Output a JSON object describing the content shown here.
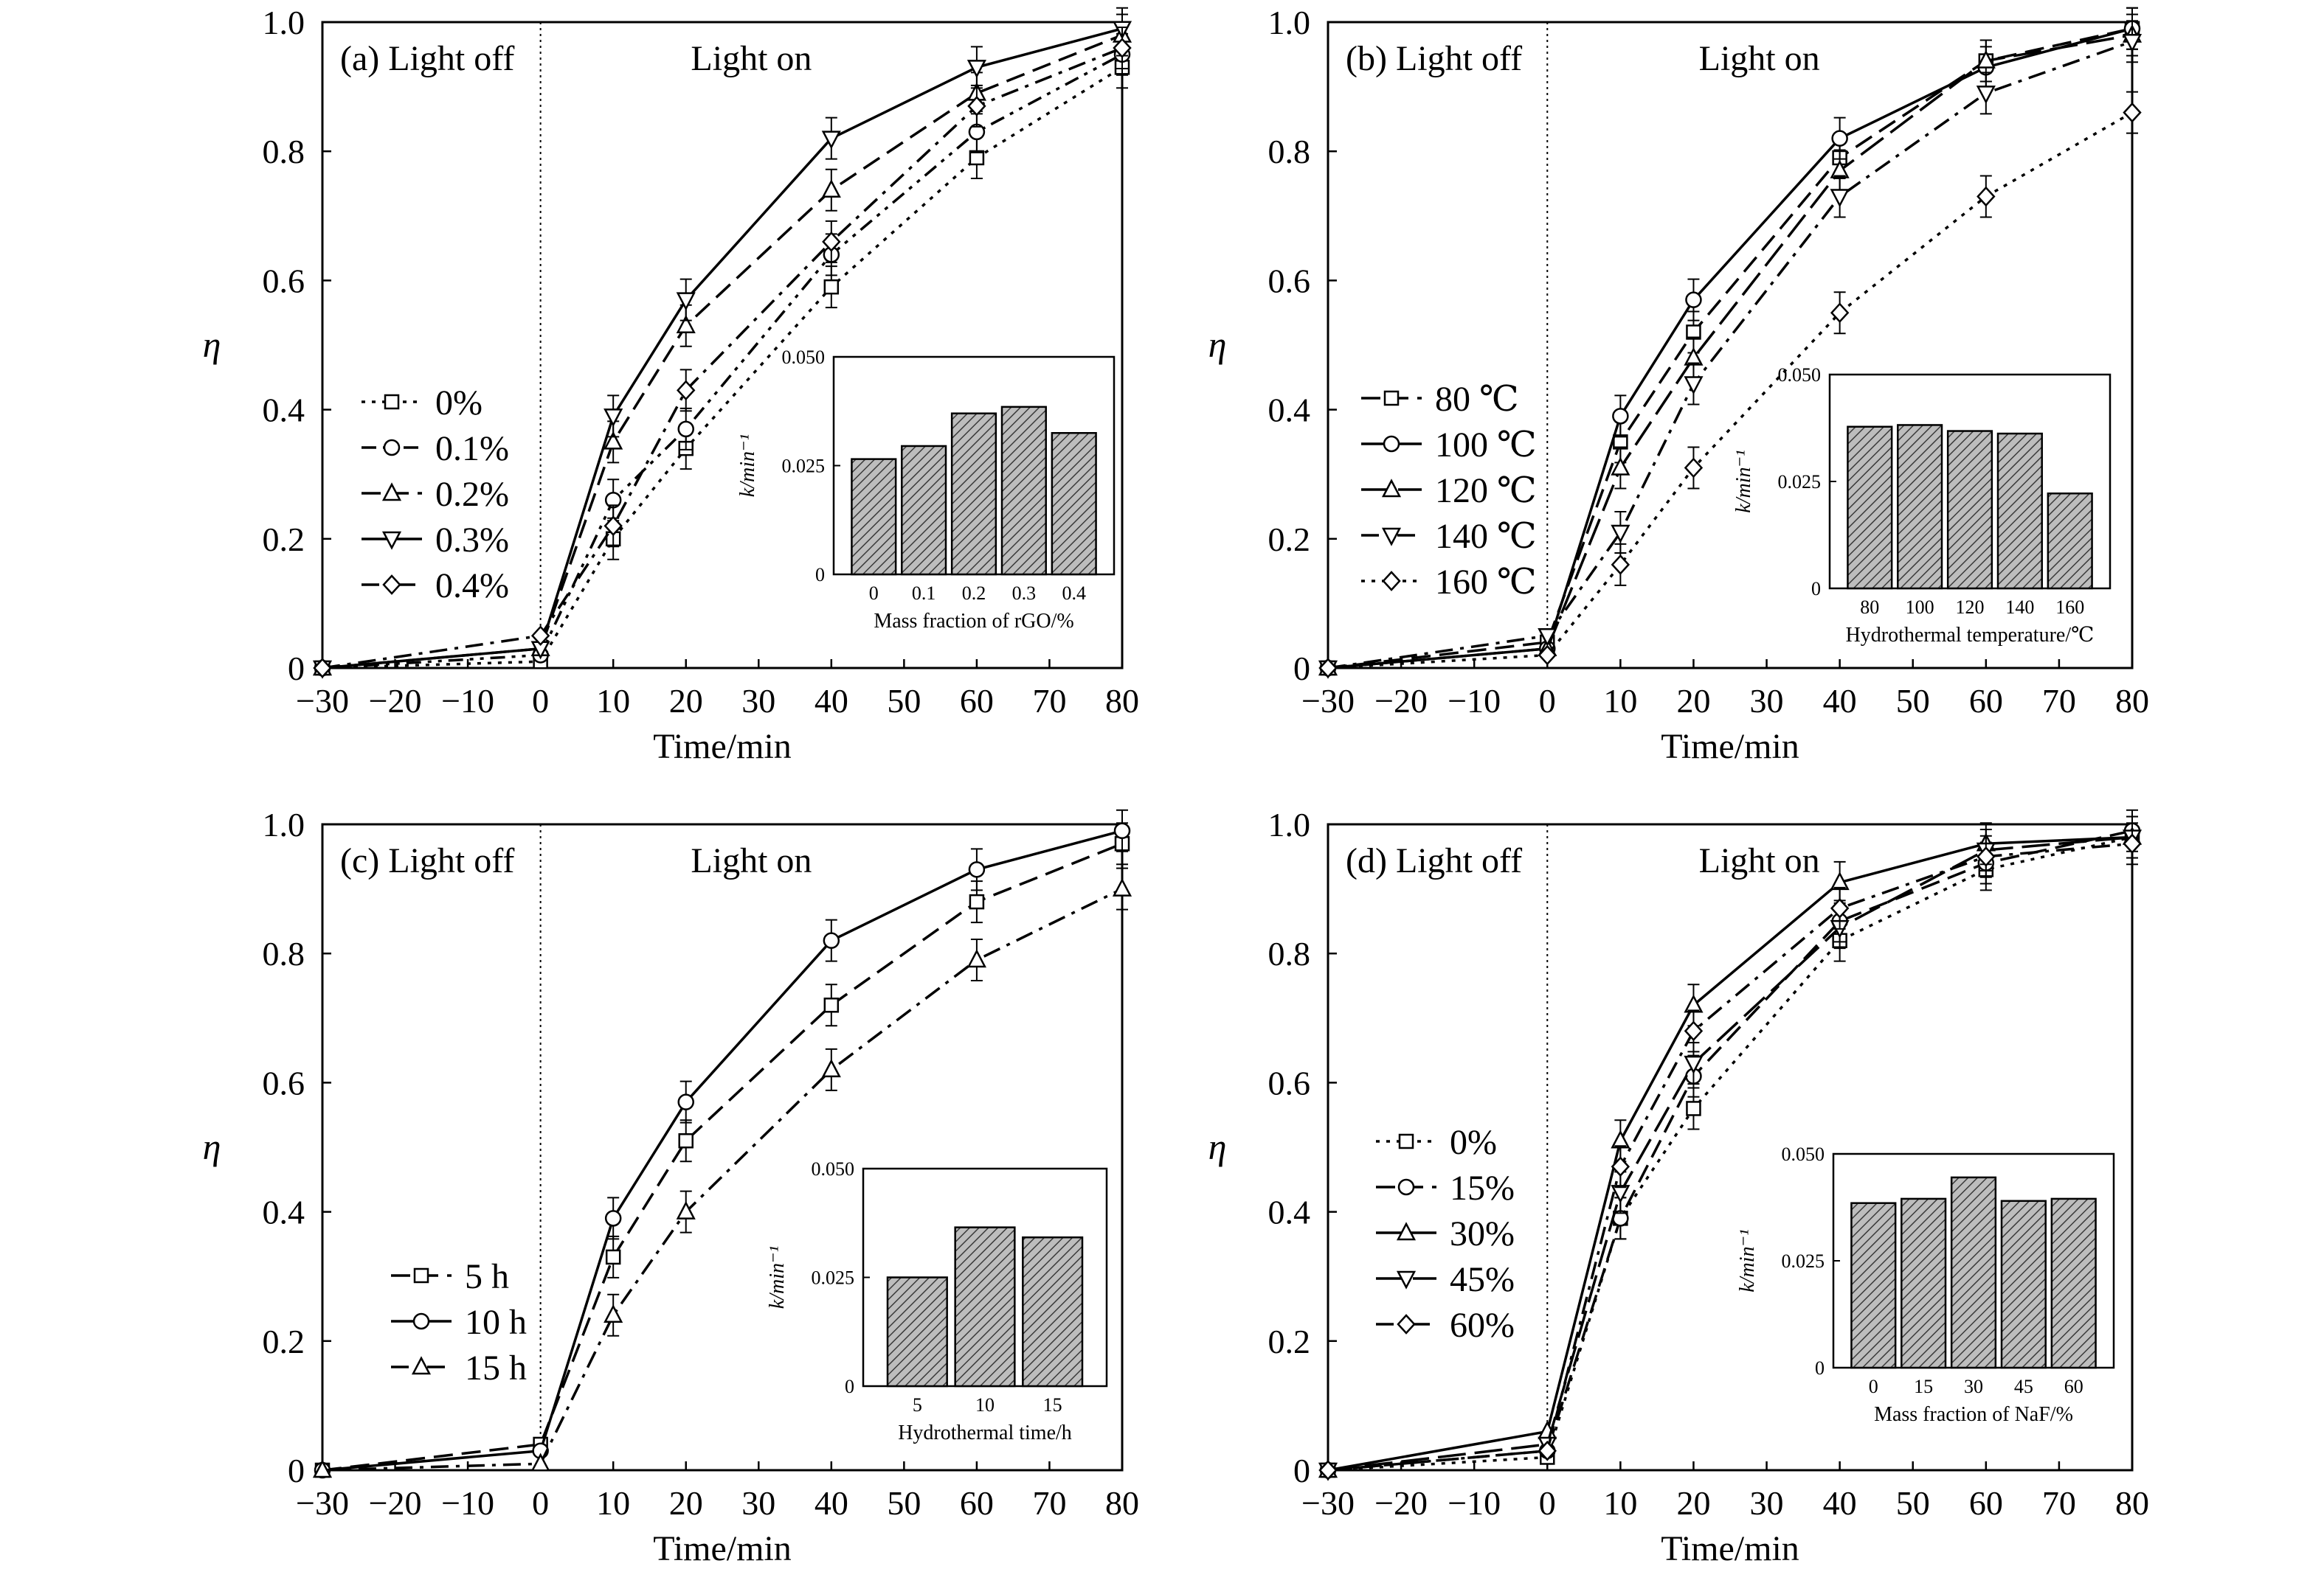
{
  "chart_data": [
    {
      "type": "line",
      "panel_label": "(a)",
      "region_labels": {
        "left": "Light off",
        "right": "Light on"
      },
      "xlabel": "Time/min",
      "ylabel": "η",
      "xlim": [
        -30,
        80
      ],
      "ylim": [
        0,
        1.0
      ],
      "x_ticks": [
        -30,
        -20,
        -10,
        0,
        10,
        20,
        30,
        40,
        50,
        60,
        70,
        80
      ],
      "y_ticks": [
        0,
        0.2,
        0.4,
        0.6,
        0.8,
        1.0
      ],
      "x": [
        -30,
        0,
        10,
        20,
        40,
        60,
        80
      ],
      "legend_position": "middle-left",
      "series": [
        {
          "name": "0%",
          "marker": "square",
          "line": "dotted",
          "values": [
            0,
            0.01,
            0.2,
            0.34,
            0.59,
            0.79,
            0.93
          ]
        },
        {
          "name": "0.1%",
          "marker": "circle",
          "line": "dash-dot-dot",
          "values": [
            0,
            0.02,
            0.26,
            0.37,
            0.64,
            0.83,
            0.95
          ]
        },
        {
          "name": "0.2%",
          "marker": "triangle-up",
          "line": "dashed",
          "values": [
            0,
            0.03,
            0.35,
            0.53,
            0.74,
            0.89,
            0.98
          ]
        },
        {
          "name": "0.3%",
          "marker": "triangle-down",
          "line": "solid",
          "values": [
            0,
            0.03,
            0.39,
            0.57,
            0.82,
            0.93,
            0.99
          ]
        },
        {
          "name": "0.4%",
          "marker": "diamond",
          "line": "dash-dot",
          "values": [
            0,
            0.05,
            0.22,
            0.43,
            0.66,
            0.87,
            0.96
          ]
        }
      ],
      "inset": {
        "type": "bar",
        "xlabel": "Mass fraction of rGO/%",
        "ylabel": "k/min⁻¹",
        "ylim": [
          0,
          0.05
        ],
        "y_ticks": [
          "0",
          "0.025",
          "0.050"
        ],
        "categories": [
          "0",
          "0.1",
          "0.2",
          "0.3",
          "0.4"
        ],
        "values": [
          0.0265,
          0.0295,
          0.037,
          0.0385,
          0.0325
        ]
      }
    },
    {
      "type": "line",
      "panel_label": "(b)",
      "region_labels": {
        "left": "Light off",
        "right": "Light on"
      },
      "xlabel": "Time/min",
      "ylabel": "η",
      "xlim": [
        -30,
        80
      ],
      "ylim": [
        0,
        1.0
      ],
      "x_ticks": [
        -30,
        -20,
        -10,
        0,
        10,
        20,
        30,
        40,
        50,
        60,
        70,
        80
      ],
      "y_ticks": [
        0,
        0.2,
        0.4,
        0.6,
        0.8,
        1.0
      ],
      "x": [
        -30,
        0,
        10,
        20,
        40,
        60,
        80
      ],
      "legend_position": "middle-left",
      "series": [
        {
          "name": "80 ℃",
          "marker": "square",
          "line": "dashed",
          "values": [
            0,
            0.04,
            0.35,
            0.52,
            0.79,
            0.94,
            0.99
          ]
        },
        {
          "name": "100 ℃",
          "marker": "circle",
          "line": "solid",
          "values": [
            0,
            0.03,
            0.39,
            0.57,
            0.82,
            0.93,
            0.99
          ]
        },
        {
          "name": "120 ℃",
          "marker": "triangle-up",
          "line": "long-dash",
          "values": [
            0,
            0.03,
            0.31,
            0.48,
            0.77,
            0.94,
            0.98
          ]
        },
        {
          "name": "140 ℃",
          "marker": "triangle-down",
          "line": "dash-dot",
          "values": [
            0,
            0.05,
            0.21,
            0.44,
            0.73,
            0.89,
            0.97
          ]
        },
        {
          "name": "160 ℃",
          "marker": "diamond",
          "line": "dotted",
          "values": [
            0,
            0.02,
            0.16,
            0.31,
            0.55,
            0.73,
            0.86
          ]
        }
      ],
      "inset": {
        "type": "bar",
        "xlabel": "Hydrothermal temperature/℃",
        "ylabel": "k/min⁻¹",
        "ylim": [
          0,
          0.05
        ],
        "y_ticks": [
          "0",
          "0.025",
          "0.050"
        ],
        "categories": [
          "80",
          "100",
          "120",
          "140",
          "160"
        ],
        "values": [
          0.0378,
          0.0382,
          0.0368,
          0.0362,
          0.0222
        ]
      }
    },
    {
      "type": "line",
      "panel_label": "(c)",
      "region_labels": {
        "left": "Light off",
        "right": "Light on"
      },
      "xlabel": "Time/min",
      "ylabel": "η",
      "xlim": [
        -30,
        80
      ],
      "ylim": [
        0,
        1.0
      ],
      "x_ticks": [
        -30,
        -20,
        -10,
        0,
        10,
        20,
        30,
        40,
        50,
        60,
        70,
        80
      ],
      "y_ticks": [
        0,
        0.2,
        0.4,
        0.6,
        0.8,
        1.0
      ],
      "x": [
        -30,
        0,
        10,
        20,
        40,
        60,
        80
      ],
      "legend_position": "lower-left",
      "series": [
        {
          "name": "5 h",
          "marker": "square",
          "line": "dashed",
          "values": [
            0,
            0.04,
            0.33,
            0.51,
            0.72,
            0.88,
            0.97
          ]
        },
        {
          "name": "10 h",
          "marker": "circle",
          "line": "solid",
          "values": [
            0,
            0.03,
            0.39,
            0.57,
            0.82,
            0.93,
            0.99
          ]
        },
        {
          "name": "15 h",
          "marker": "triangle-up",
          "line": "dash-dot",
          "values": [
            0,
            0.01,
            0.24,
            0.4,
            0.62,
            0.79,
            0.9
          ]
        }
      ],
      "inset": {
        "type": "bar",
        "xlabel": "Hydrothermal time/h",
        "ylabel": "k/min⁻¹",
        "ylim": [
          0,
          0.05
        ],
        "y_ticks": [
          "0",
          "0.025",
          "0.050"
        ],
        "categories": [
          "5",
          "10",
          "15"
        ],
        "values": [
          0.025,
          0.0365,
          0.0342
        ]
      }
    },
    {
      "type": "line",
      "panel_label": "(d)",
      "region_labels": {
        "left": "Light off",
        "right": "Light on"
      },
      "xlabel": "Time/min",
      "ylabel": "η",
      "xlim": [
        -30,
        80
      ],
      "ylim": [
        0,
        1.0
      ],
      "x_ticks": [
        -30,
        -20,
        -10,
        0,
        10,
        20,
        30,
        40,
        50,
        60,
        70,
        80
      ],
      "y_ticks": [
        0,
        0.2,
        0.4,
        0.6,
        0.8,
        1.0
      ],
      "x": [
        -30,
        0,
        10,
        20,
        40,
        60,
        80
      ],
      "legend_position": "middle-left",
      "series": [
        {
          "name": "0%",
          "marker": "square",
          "line": "dotted",
          "values": [
            0,
            0.02,
            0.39,
            0.56,
            0.82,
            0.93,
            0.98
          ]
        },
        {
          "name": "15%",
          "marker": "circle",
          "line": "dashed",
          "values": [
            0,
            0.03,
            0.39,
            0.61,
            0.85,
            0.94,
            0.99
          ]
        },
        {
          "name": "30%",
          "marker": "triangle-up",
          "line": "solid",
          "values": [
            0,
            0.06,
            0.51,
            0.72,
            0.91,
            0.97,
            0.98
          ]
        },
        {
          "name": "45%",
          "marker": "triangle-down",
          "line": "long-dash",
          "values": [
            0,
            0.04,
            0.43,
            0.63,
            0.84,
            0.96,
            0.98
          ]
        },
        {
          "name": "60%",
          "marker": "diamond",
          "line": "dash-dot",
          "values": [
            0,
            0.03,
            0.47,
            0.68,
            0.87,
            0.95,
            0.97
          ]
        }
      ],
      "inset": {
        "type": "bar",
        "xlabel": "Mass fraction of NaF/%",
        "ylabel": "k/min⁻¹",
        "ylim": [
          0,
          0.05
        ],
        "y_ticks": [
          "0",
          "0.025",
          "0.050"
        ],
        "categories": [
          "0",
          "15",
          "30",
          "45",
          "60"
        ],
        "values": [
          0.0385,
          0.0395,
          0.0445,
          0.039,
          0.0395
        ]
      }
    }
  ]
}
